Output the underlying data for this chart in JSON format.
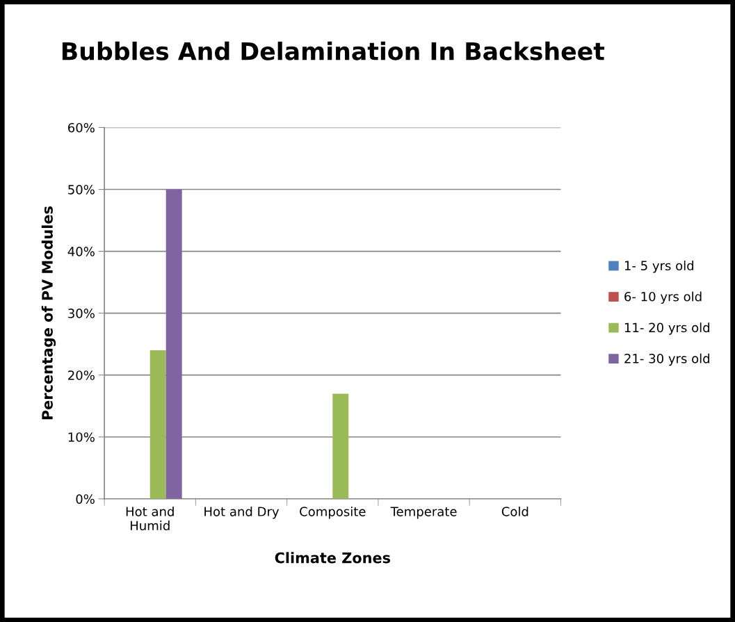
{
  "chart_data": {
    "type": "bar",
    "title": "Bubbles And Delamination In Backsheet",
    "xlabel": "Climate Zones",
    "ylabel": "Percentage of PV Modules",
    "categories": [
      "Hot and Humid",
      "Hot and Dry",
      "Composite",
      "Temperate",
      "Cold"
    ],
    "series": [
      {
        "name": "1- 5 yrs old",
        "color": "#4f81bd",
        "values": [
          0,
          0,
          0,
          0,
          0
        ]
      },
      {
        "name": "6- 10 yrs old",
        "color": "#c0504d",
        "values": [
          0,
          0,
          0,
          0,
          0
        ]
      },
      {
        "name": "11- 20 yrs old",
        "color": "#9bbb59",
        "values": [
          24,
          0,
          17,
          0,
          0
        ]
      },
      {
        "name": "21- 30 yrs old",
        "color": "#8064a2",
        "values": [
          50,
          0,
          0,
          0,
          0
        ]
      }
    ],
    "ylim": [
      0,
      60
    ],
    "yticks": [
      {
        "value": 0,
        "label": "0%"
      },
      {
        "value": 10,
        "label": "10%"
      },
      {
        "value": 20,
        "label": "20%"
      },
      {
        "value": 30,
        "label": "30%"
      },
      {
        "value": 40,
        "label": "40%"
      },
      {
        "value": 50,
        "label": "50%"
      },
      {
        "value": 60,
        "label": "60%"
      }
    ],
    "grid": "y",
    "legend": "right"
  }
}
